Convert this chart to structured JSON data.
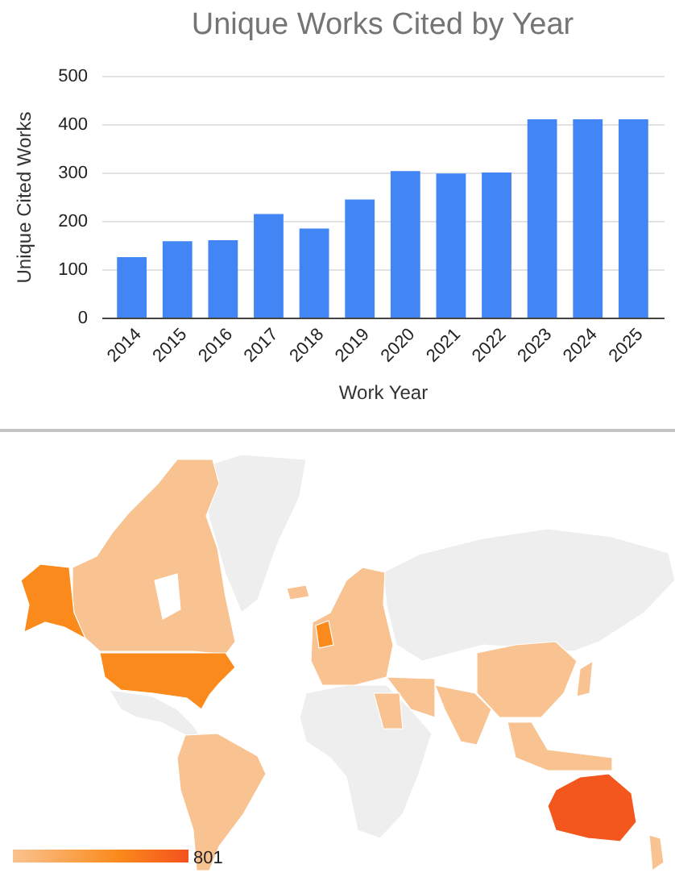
{
  "chart_data": [
    {
      "type": "bar",
      "title": "Unique Works Cited by Year",
      "xlabel": "Work Year",
      "ylabel": "Unique Cited Works",
      "categories": [
        "2014",
        "2015",
        "2016",
        "2017",
        "2018",
        "2019",
        "2020",
        "2021",
        "2022",
        "2023",
        "2024",
        "2025"
      ],
      "values": [
        125,
        158,
        160,
        214,
        184,
        244,
        303,
        298,
        300,
        410,
        410,
        410
      ],
      "color": "#4285f4",
      "ylim": [
        0,
        500
      ],
      "yticks": [
        0,
        100,
        200,
        300,
        400,
        500
      ],
      "grid": "y"
    },
    {
      "type": "other",
      "annotations": [
        "801"
      ]
    }
  ]
}
